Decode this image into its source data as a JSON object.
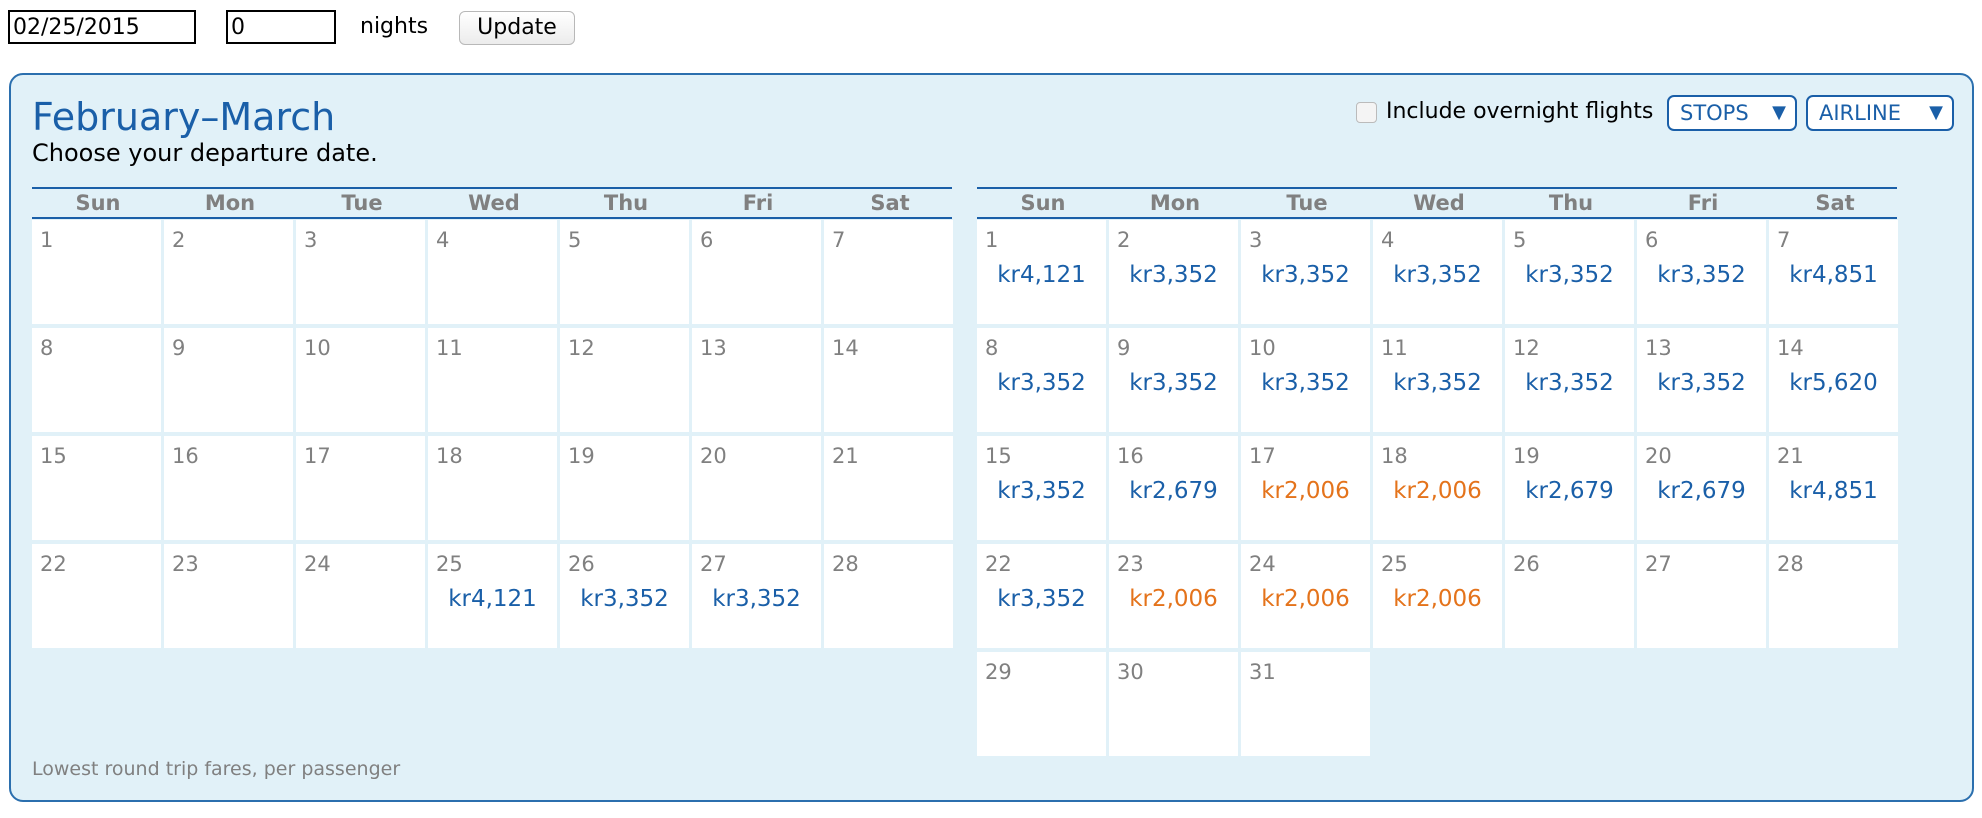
{
  "form": {
    "date_value": "02/25/2015",
    "nights_value": "0",
    "nights_label": "nights",
    "update_label": "Update"
  },
  "panel": {
    "title": "February–March",
    "subtitle": "Choose your departure date.",
    "overnight_label": "Include overnight flights",
    "overnight_checked": false,
    "stops_label": "STOPS",
    "airline_label": "AIRLINE",
    "dropdown_arrow": "▼",
    "footer_note": "Lowest round trip fares, per passenger"
  },
  "weekdays": [
    "Sun",
    "Mon",
    "Tue",
    "Wed",
    "Thu",
    "Fri",
    "Sat"
  ],
  "colors": {
    "accent_blue": "#1a5fa8",
    "cheap_orange": "#e4731b",
    "panel_bg": "#e1f1f8",
    "day_gray": "#808080"
  },
  "months": [
    {
      "days": [
        {
          "d": "1"
        },
        {
          "d": "2"
        },
        {
          "d": "3"
        },
        {
          "d": "4"
        },
        {
          "d": "5"
        },
        {
          "d": "6"
        },
        {
          "d": "7"
        },
        {
          "d": "8"
        },
        {
          "d": "9"
        },
        {
          "d": "10"
        },
        {
          "d": "11"
        },
        {
          "d": "12"
        },
        {
          "d": "13"
        },
        {
          "d": "14"
        },
        {
          "d": "15"
        },
        {
          "d": "16"
        },
        {
          "d": "17"
        },
        {
          "d": "18"
        },
        {
          "d": "19"
        },
        {
          "d": "20"
        },
        {
          "d": "21"
        },
        {
          "d": "22"
        },
        {
          "d": "23"
        },
        {
          "d": "24"
        },
        {
          "d": "25",
          "fare": "kr4,121"
        },
        {
          "d": "26",
          "fare": "kr3,352"
        },
        {
          "d": "27",
          "fare": "kr3,352"
        },
        {
          "d": "28"
        }
      ]
    },
    {
      "days": [
        {
          "d": "1",
          "fare": "kr4,121"
        },
        {
          "d": "2",
          "fare": "kr3,352"
        },
        {
          "d": "3",
          "fare": "kr3,352"
        },
        {
          "d": "4",
          "fare": "kr3,352"
        },
        {
          "d": "5",
          "fare": "kr3,352"
        },
        {
          "d": "6",
          "fare": "kr3,352"
        },
        {
          "d": "7",
          "fare": "kr4,851"
        },
        {
          "d": "8",
          "fare": "kr3,352"
        },
        {
          "d": "9",
          "fare": "kr3,352"
        },
        {
          "d": "10",
          "fare": "kr3,352"
        },
        {
          "d": "11",
          "fare": "kr3,352"
        },
        {
          "d": "12",
          "fare": "kr3,352"
        },
        {
          "d": "13",
          "fare": "kr3,352"
        },
        {
          "d": "14",
          "fare": "kr5,620"
        },
        {
          "d": "15",
          "fare": "kr3,352"
        },
        {
          "d": "16",
          "fare": "kr2,679"
        },
        {
          "d": "17",
          "fare": "kr2,006",
          "cheap": true
        },
        {
          "d": "18",
          "fare": "kr2,006",
          "cheap": true
        },
        {
          "d": "19",
          "fare": "kr2,679"
        },
        {
          "d": "20",
          "fare": "kr2,679"
        },
        {
          "d": "21",
          "fare": "kr4,851"
        },
        {
          "d": "22",
          "fare": "kr3,352"
        },
        {
          "d": "23",
          "fare": "kr2,006",
          "cheap": true
        },
        {
          "d": "24",
          "fare": "kr2,006",
          "cheap": true
        },
        {
          "d": "25",
          "fare": "kr2,006",
          "cheap": true
        },
        {
          "d": "26"
        },
        {
          "d": "27"
        },
        {
          "d": "28"
        },
        {
          "d": "29"
        },
        {
          "d": "30"
        },
        {
          "d": "31"
        }
      ]
    }
  ]
}
